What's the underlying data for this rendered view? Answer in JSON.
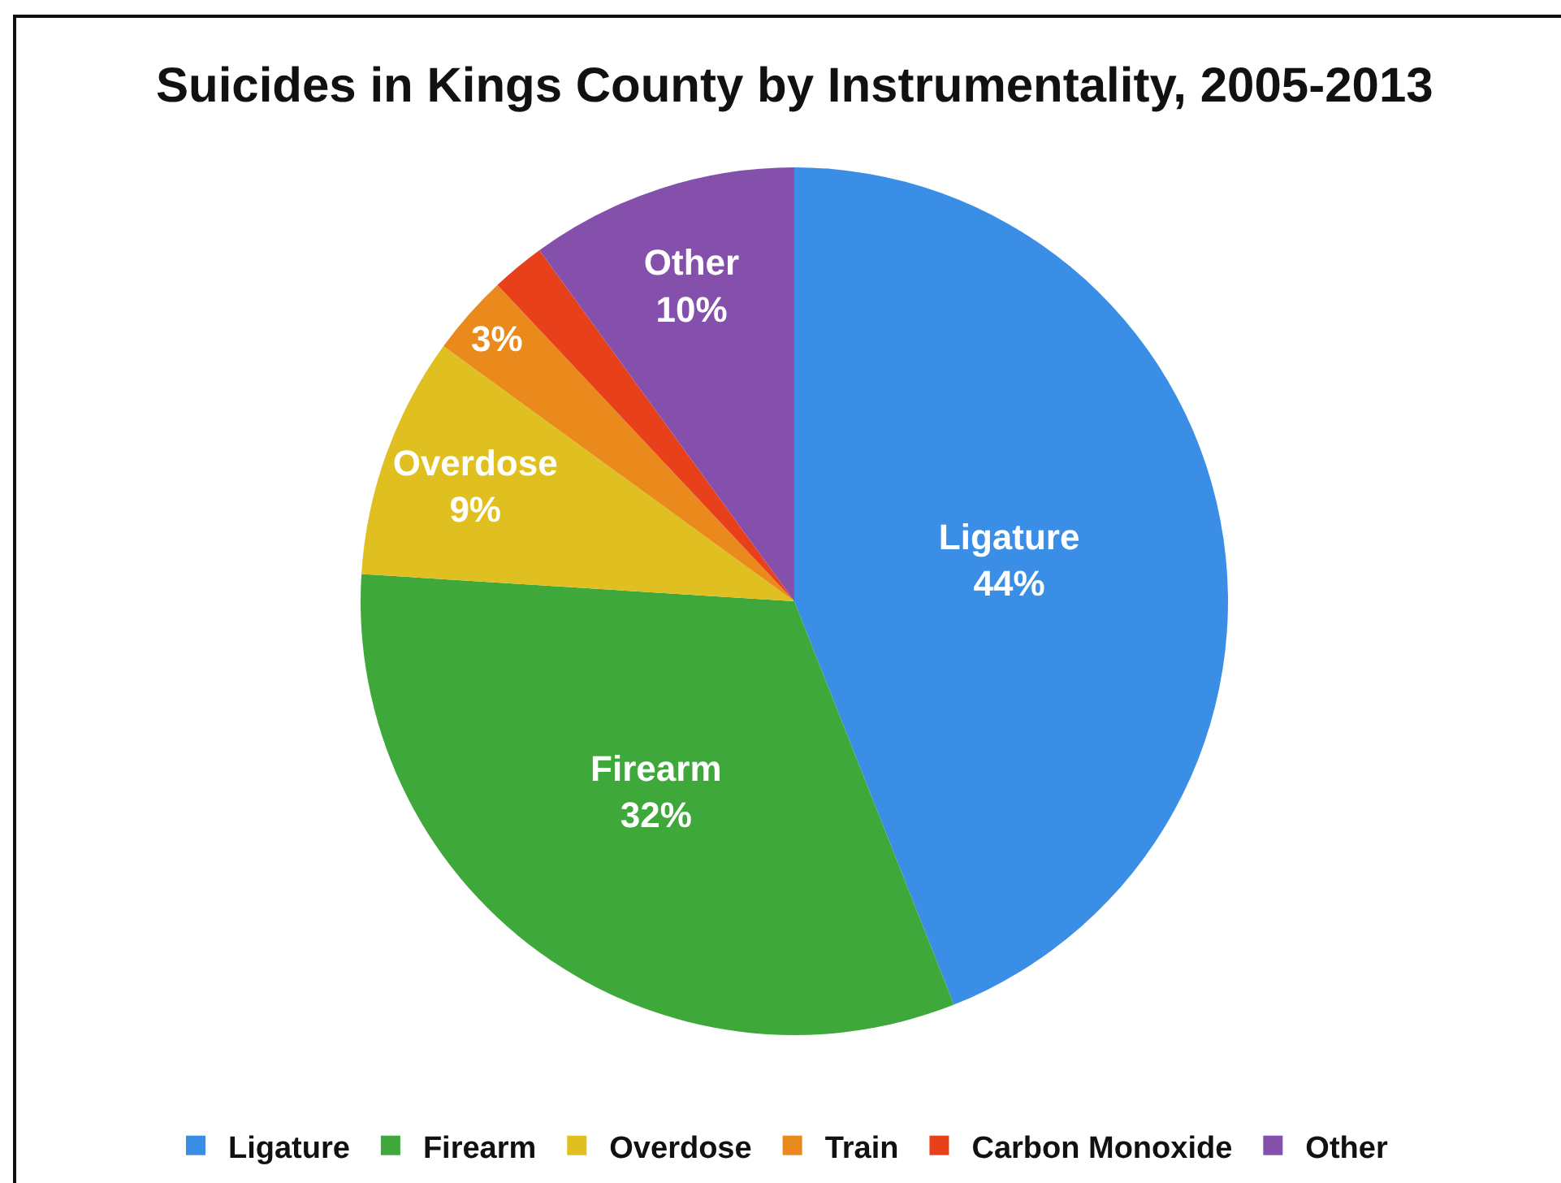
{
  "chart_data": {
    "type": "pie",
    "title": "Suicides in Kings County by Instrumentality, 2005-2013",
    "categories": [
      "Ligature",
      "Firearm",
      "Overdose",
      "Train",
      "Carbon Monoxide",
      "Other"
    ],
    "values": [
      44,
      32,
      9,
      3,
      2,
      10
    ],
    "colors": [
      "#3a8ee6",
      "#3fa83a",
      "#e0c020",
      "#ea8a1c",
      "#e8401a",
      "#8450ab"
    ],
    "value_labels": [
      "Ligature\n44%",
      "Firearm\n32%",
      "Overdose\n9%",
      "3%",
      null,
      "Other\n10%"
    ],
    "legend": "bottom"
  }
}
